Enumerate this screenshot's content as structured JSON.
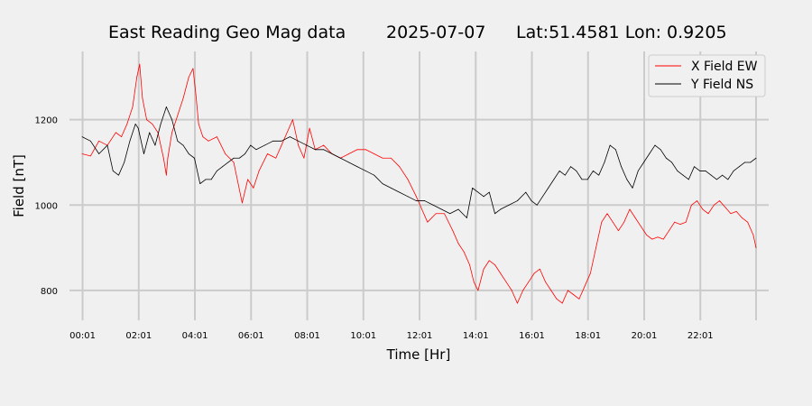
{
  "chart_data": {
    "type": "line",
    "title": {
      "name": "East Reading Geo Mag data",
      "date": "2025-07-07",
      "location": "Lat:51.4581  Lon: 0.9205"
    },
    "xlabel": "Time  [Hr]",
    "ylabel": "Field  [nT]",
    "x_unit": "hours",
    "xlim": [
      -0.45,
      24.45
    ],
    "ylim": [
      730,
      1360
    ],
    "x_ticks": [
      {
        "value": 0.0167,
        "label": "00:01"
      },
      {
        "value": 2.0167,
        "label": "02:01"
      },
      {
        "value": 4.0167,
        "label": "04:01"
      },
      {
        "value": 6.0167,
        "label": "06:01"
      },
      {
        "value": 8.0167,
        "label": "08:01"
      },
      {
        "value": 10.0167,
        "label": "10:01"
      },
      {
        "value": 12.0167,
        "label": "12:01"
      },
      {
        "value": 14.0167,
        "label": "14:01"
      },
      {
        "value": 16.0167,
        "label": "16:01"
      },
      {
        "value": 18.0167,
        "label": "18:01"
      },
      {
        "value": 20.0167,
        "label": "20:01"
      },
      {
        "value": 22.0167,
        "label": "22:01"
      }
    ],
    "x_grid_hours": [
      0.0167,
      2.0167,
      4.0167,
      6.0167,
      8.0167,
      10.0167,
      12.0167,
      14.0167,
      16.0167,
      18.0167,
      20.0167,
      22.0167,
      24.0
    ],
    "y_ticks": [
      800,
      1000,
      1200
    ],
    "grid": true,
    "legend_position": "top-right",
    "series": [
      {
        "name": "X Field EW",
        "color": "#ff0000",
        "x": [
          0.0,
          0.3,
          0.6,
          0.9,
          1.2,
          1.4,
          1.6,
          1.8,
          1.95,
          2.05,
          2.15,
          2.3,
          2.5,
          2.7,
          2.9,
          3.0,
          3.05,
          3.2,
          3.4,
          3.6,
          3.8,
          3.95,
          4.05,
          4.15,
          4.3,
          4.5,
          4.8,
          5.1,
          5.4,
          5.7,
          5.9,
          6.1,
          6.3,
          6.6,
          6.9,
          7.1,
          7.3,
          7.5,
          7.7,
          7.9,
          8.1,
          8.3,
          8.6,
          8.9,
          9.2,
          9.5,
          9.8,
          10.1,
          10.4,
          10.7,
          11.0,
          11.3,
          11.6,
          11.9,
          12.1,
          12.3,
          12.6,
          12.9,
          13.2,
          13.4,
          13.6,
          13.8,
          13.95,
          14.1,
          14.3,
          14.5,
          14.7,
          14.9,
          15.1,
          15.3,
          15.5,
          15.7,
          15.9,
          16.1,
          16.3,
          16.5,
          16.7,
          16.9,
          17.1,
          17.3,
          17.5,
          17.7,
          17.9,
          18.1,
          18.3,
          18.5,
          18.7,
          18.9,
          19.1,
          19.3,
          19.5,
          19.7,
          19.9,
          20.1,
          20.3,
          20.5,
          20.7,
          20.9,
          21.1,
          21.3,
          21.5,
          21.7,
          21.9,
          22.1,
          22.3,
          22.5,
          22.7,
          22.9,
          23.1,
          23.3,
          23.5,
          23.7,
          23.9,
          24.0
        ],
        "values": [
          1120,
          1115,
          1150,
          1140,
          1170,
          1160,
          1190,
          1230,
          1300,
          1330,
          1250,
          1200,
          1190,
          1170,
          1110,
          1070,
          1110,
          1170,
          1210,
          1250,
          1300,
          1320,
          1260,
          1190,
          1160,
          1150,
          1160,
          1120,
          1100,
          1005,
          1060,
          1040,
          1080,
          1120,
          1110,
          1140,
          1170,
          1200,
          1140,
          1110,
          1180,
          1130,
          1140,
          1120,
          1110,
          1120,
          1130,
          1130,
          1120,
          1110,
          1110,
          1090,
          1060,
          1020,
          990,
          960,
          980,
          980,
          940,
          910,
          890,
          860,
          820,
          800,
          850,
          870,
          860,
          840,
          820,
          800,
          770,
          800,
          820,
          840,
          850,
          820,
          800,
          780,
          770,
          800,
          790,
          780,
          810,
          840,
          900,
          960,
          980,
          960,
          940,
          960,
          990,
          970,
          950,
          930,
          920,
          925,
          920,
          940,
          960,
          955,
          960,
          1000,
          1010,
          990,
          980,
          1000,
          1010,
          995,
          980,
          985,
          970,
          960,
          930,
          900
        ]
      },
      {
        "name": "Y Field NS",
        "color": "#000000",
        "x": [
          0.0,
          0.3,
          0.6,
          0.9,
          1.1,
          1.3,
          1.5,
          1.7,
          1.9,
          2.0,
          2.2,
          2.4,
          2.6,
          2.8,
          3.0,
          3.2,
          3.4,
          3.6,
          3.8,
          4.0,
          4.2,
          4.4,
          4.6,
          4.8,
          5.0,
          5.2,
          5.4,
          5.6,
          5.8,
          6.0,
          6.2,
          6.5,
          6.8,
          7.1,
          7.4,
          7.7,
          8.0,
          8.3,
          8.6,
          8.9,
          9.2,
          9.5,
          9.8,
          10.1,
          10.4,
          10.7,
          11.0,
          11.3,
          11.6,
          11.9,
          12.2,
          12.5,
          12.8,
          13.1,
          13.4,
          13.7,
          13.9,
          14.1,
          14.3,
          14.5,
          14.7,
          14.9,
          15.2,
          15.5,
          15.8,
          16.0,
          16.2,
          16.4,
          16.6,
          16.8,
          17.0,
          17.2,
          17.4,
          17.6,
          17.8,
          18.0,
          18.2,
          18.4,
          18.6,
          18.8,
          19.0,
          19.2,
          19.4,
          19.6,
          19.8,
          20.0,
          20.2,
          20.4,
          20.6,
          20.8,
          21.0,
          21.2,
          21.4,
          21.6,
          21.8,
          22.0,
          22.2,
          22.4,
          22.6,
          22.8,
          23.0,
          23.2,
          23.4,
          23.6,
          23.8,
          24.0
        ],
        "values": [
          1160,
          1150,
          1120,
          1140,
          1080,
          1070,
          1100,
          1150,
          1190,
          1180,
          1120,
          1170,
          1140,
          1190,
          1230,
          1200,
          1150,
          1140,
          1120,
          1110,
          1050,
          1060,
          1060,
          1080,
          1090,
          1100,
          1110,
          1110,
          1120,
          1140,
          1130,
          1140,
          1150,
          1150,
          1160,
          1150,
          1140,
          1130,
          1130,
          1120,
          1110,
          1100,
          1090,
          1080,
          1070,
          1050,
          1040,
          1030,
          1020,
          1010,
          1010,
          1000,
          990,
          980,
          990,
          970,
          1040,
          1030,
          1020,
          1030,
          980,
          990,
          1000,
          1010,
          1030,
          1010,
          1000,
          1020,
          1040,
          1060,
          1080,
          1070,
          1090,
          1080,
          1060,
          1060,
          1080,
          1070,
          1100,
          1140,
          1130,
          1090,
          1060,
          1040,
          1080,
          1100,
          1120,
          1140,
          1130,
          1110,
          1100,
          1080,
          1070,
          1060,
          1090,
          1080,
          1080,
          1070,
          1060,
          1070,
          1060,
          1080,
          1090,
          1100,
          1100,
          1110
        ]
      }
    ]
  }
}
